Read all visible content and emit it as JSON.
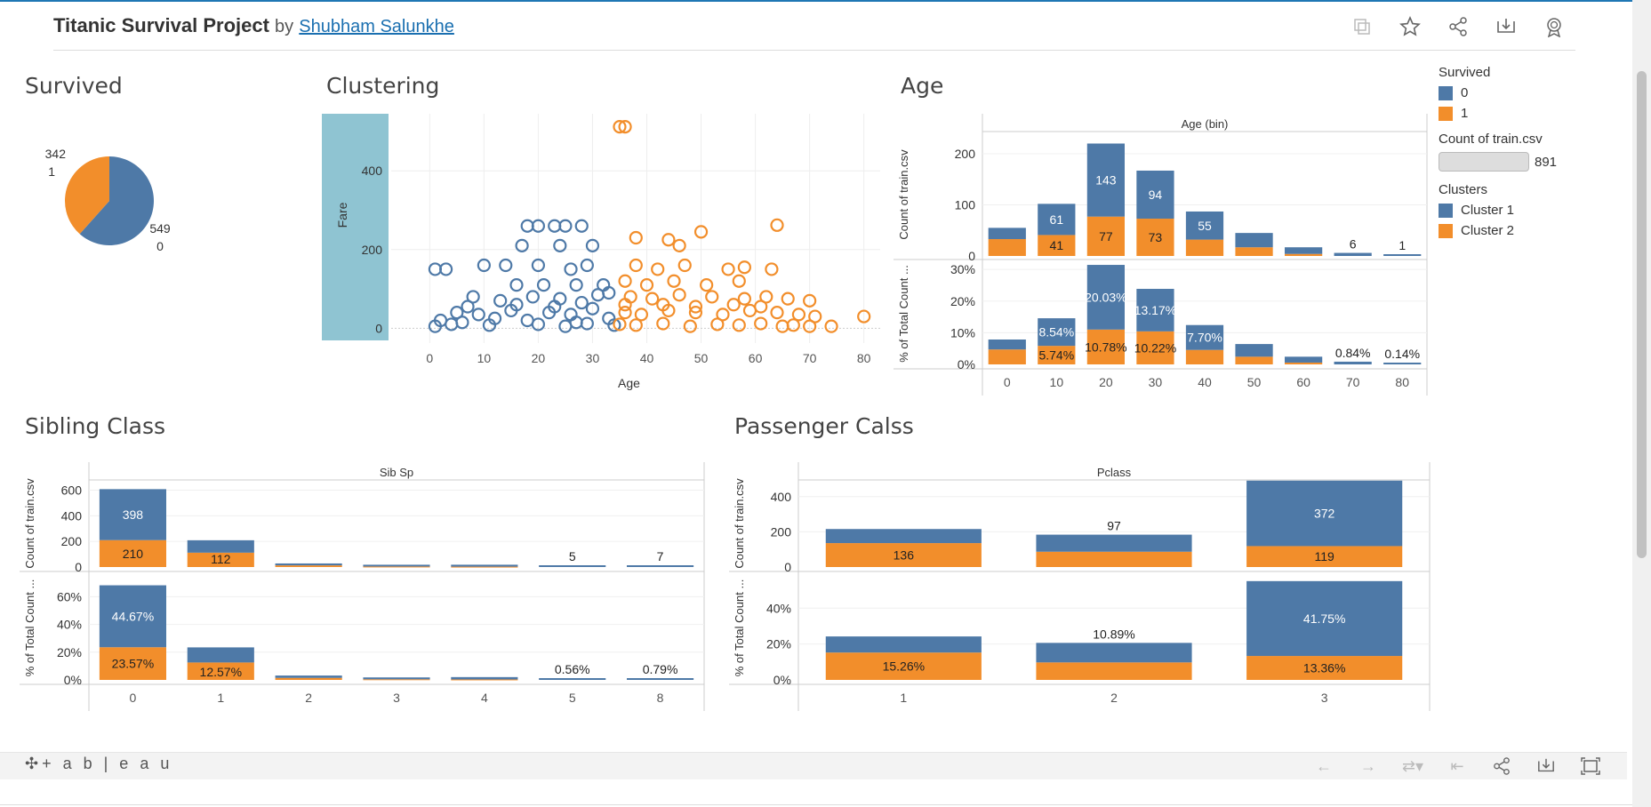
{
  "header": {
    "title": "Titanic Survival Project",
    "by": "by",
    "author": "Shubham Salunkhe"
  },
  "sections": {
    "survived": "Survived",
    "clustering": "Clustering",
    "age": "Age",
    "sibling": "Sibling Class",
    "passenger": "Passenger Calss"
  },
  "legend": {
    "survived_title": "Survived",
    "survived_items": [
      "0",
      "1"
    ],
    "count_title": "Count of train.csv",
    "count_value": "891",
    "clusters_title": "Clusters",
    "cluster_items": [
      "Cluster 1",
      "Cluster 2"
    ]
  },
  "colors": {
    "blue": "#4e79a7",
    "orange": "#f28e2b",
    "highlight": "#8fc4d2"
  },
  "footer": {
    "logo": "+ a b | e a u"
  },
  "chart_data": [
    {
      "id": "survived_pie",
      "type": "pie",
      "title": "Survived",
      "slices": [
        {
          "label": "0",
          "value": 549,
          "color": "#4e79a7"
        },
        {
          "label": "1",
          "value": 342,
          "color": "#f28e2b"
        }
      ]
    },
    {
      "id": "clustering_scatter",
      "type": "scatter",
      "title": "Clustering",
      "xlabel": "Age",
      "ylabel": "Fare",
      "xlim": [
        -3,
        83
      ],
      "ylim": [
        -15,
        545
      ],
      "xticks": [
        "0",
        "10",
        "20",
        "30",
        "40",
        "50",
        "60",
        "70",
        "80"
      ],
      "yticks": [
        "0",
        "200",
        "400"
      ],
      "series": [
        {
          "name": "Cluster 1",
          "color": "#4e79a7",
          "points": [
            [
              1,
              150
            ],
            [
              3,
              150
            ],
            [
              18,
              260
            ],
            [
              20,
              260
            ],
            [
              23,
              260
            ],
            [
              25,
              260
            ],
            [
              28,
              260
            ],
            [
              17,
              210
            ],
            [
              24,
              210
            ],
            [
              30,
              210
            ],
            [
              10,
              160
            ],
            [
              14,
              160
            ],
            [
              20,
              160
            ],
            [
              26,
              150
            ],
            [
              29,
              160
            ],
            [
              16,
              110
            ],
            [
              21,
              110
            ],
            [
              27,
              110
            ],
            [
              32,
              110
            ],
            [
              8,
              80
            ],
            [
              13,
              70
            ],
            [
              19,
              80
            ],
            [
              24,
              75
            ],
            [
              31,
              85
            ],
            [
              33,
              90
            ],
            [
              5,
              40
            ],
            [
              9,
              35
            ],
            [
              15,
              45
            ],
            [
              22,
              40
            ],
            [
              26,
              35
            ],
            [
              30,
              50
            ],
            [
              2,
              20
            ],
            [
              6,
              15
            ],
            [
              12,
              25
            ],
            [
              18,
              20
            ],
            [
              27,
              15
            ],
            [
              33,
              25
            ],
            [
              1,
              5
            ],
            [
              4,
              10
            ],
            [
              11,
              8
            ],
            [
              20,
              10
            ],
            [
              25,
              5
            ],
            [
              29,
              12
            ],
            [
              34,
              8
            ],
            [
              7,
              55
            ],
            [
              16,
              60
            ],
            [
              23,
              55
            ],
            [
              28,
              65
            ]
          ]
        },
        {
          "name": "Cluster 2",
          "color": "#f28e2b",
          "points": [
            [
              35,
              512
            ],
            [
              36,
              512
            ],
            [
              38,
              230
            ],
            [
              44,
              225
            ],
            [
              46,
              210
            ],
            [
              50,
              245
            ],
            [
              64,
              262
            ],
            [
              38,
              160
            ],
            [
              42,
              150
            ],
            [
              47,
              160
            ],
            [
              55,
              150
            ],
            [
              58,
              155
            ],
            [
              63,
              150
            ],
            [
              36,
              120
            ],
            [
              40,
              110
            ],
            [
              45,
              120
            ],
            [
              51,
              110
            ],
            [
              57,
              120
            ],
            [
              37,
              80
            ],
            [
              41,
              75
            ],
            [
              46,
              85
            ],
            [
              52,
              80
            ],
            [
              58,
              75
            ],
            [
              62,
              80
            ],
            [
              66,
              75
            ],
            [
              70,
              70
            ],
            [
              36,
              40
            ],
            [
              39,
              35
            ],
            [
              44,
              45
            ],
            [
              49,
              40
            ],
            [
              54,
              35
            ],
            [
              59,
              45
            ],
            [
              64,
              40
            ],
            [
              68,
              35
            ],
            [
              71,
              30
            ],
            [
              80,
              30
            ],
            [
              35,
              10
            ],
            [
              38,
              8
            ],
            [
              43,
              12
            ],
            [
              48,
              5
            ],
            [
              53,
              10
            ],
            [
              57,
              8
            ],
            [
              61,
              12
            ],
            [
              65,
              5
            ],
            [
              67,
              8
            ],
            [
              70,
              5
            ],
            [
              74,
              5
            ],
            [
              36,
              60
            ],
            [
              43,
              60
            ],
            [
              49,
              55
            ],
            [
              56,
              60
            ],
            [
              61,
              55
            ]
          ]
        }
      ]
    },
    {
      "id": "age_bins",
      "type": "bar",
      "title": "Age",
      "header": "Age (bin)",
      "categories": [
        "0",
        "10",
        "20",
        "30",
        "40",
        "50",
        "60",
        "70",
        "80"
      ],
      "series": [
        {
          "name": "0",
          "values": [
            22,
            61,
            143,
            94,
            55,
            28,
            13,
            6,
            1
          ]
        },
        {
          "name": "1",
          "values": [
            33,
            41,
            77,
            73,
            32,
            17,
            4,
            0,
            0
          ]
        }
      ],
      "count_labels": {
        "0": [
          "",
          "61",
          "143",
          "94",
          "55",
          "",
          "",
          "6",
          "1"
        ],
        "1": [
          "",
          "41",
          "77",
          "73",
          "",
          "",
          "",
          "",
          ""
        ]
      },
      "pct_labels": {
        "0": [
          "",
          "8.54%",
          "20.03%",
          "13.17%",
          "7.70%",
          "",
          "",
          "0.84%",
          "0.14%"
        ],
        "1": [
          "",
          "5.74%",
          "10.78%",
          "10.22%",
          "",
          "",
          "",
          "",
          ""
        ]
      },
      "ylabel_top": "Count of train.csv",
      "ylabel_bottom": "% of Total Count ...",
      "yticks_top": [
        "0",
        "100",
        "200"
      ],
      "yticks_bottom": [
        "0%",
        "10%",
        "20%",
        "30%"
      ],
      "ylim_top": [
        0,
        240
      ],
      "ylim_bottom": [
        0,
        0.32
      ]
    },
    {
      "id": "sibsp",
      "type": "bar",
      "title": "Sibling Class",
      "header": "Sib Sp",
      "categories": [
        "0",
        "1",
        "2",
        "3",
        "4",
        "5",
        "8"
      ],
      "series": [
        {
          "name": "0",
          "values": [
            398,
            97,
            15,
            12,
            15,
            5,
            7
          ]
        },
        {
          "name": "1",
          "values": [
            210,
            112,
            13,
            4,
            3,
            0,
            0
          ]
        }
      ],
      "count_labels": {
        "0": [
          "398",
          "",
          "",
          "",
          "",
          "5",
          "7"
        ],
        "1": [
          "210",
          "112",
          "",
          "",
          "",
          "",
          ""
        ]
      },
      "pct_labels": {
        "0": [
          "44.67%",
          "",
          "",
          "",
          "",
          "0.56%",
          "0.79%"
        ],
        "1": [
          "23.57%",
          "12.57%",
          "",
          "",
          "",
          "",
          ""
        ]
      },
      "ylabel_top": "Count of train.csv",
      "ylabel_bottom": "% of Total Count ...",
      "yticks_top": [
        "0",
        "200",
        "400",
        "600"
      ],
      "yticks_bottom": [
        "0%",
        "20%",
        "40%",
        "60%"
      ],
      "ylim_top": [
        0,
        680
      ],
      "ylim_bottom": [
        0,
        0.75
      ]
    },
    {
      "id": "pclass",
      "type": "bar",
      "title": "Passenger Calss",
      "header": "Pclass",
      "categories": [
        "1",
        "2",
        "3"
      ],
      "series": [
        {
          "name": "0",
          "values": [
            80,
            97,
            372
          ]
        },
        {
          "name": "1",
          "values": [
            136,
            87,
            119
          ]
        }
      ],
      "count_labels": {
        "0": [
          "",
          "97",
          "372"
        ],
        "1": [
          "136",
          "",
          "119"
        ]
      },
      "pct_labels": {
        "0": [
          "",
          "10.89%",
          "41.75%"
        ],
        "1": [
          "15.26%",
          "",
          "13.36%"
        ]
      },
      "ylabel_top": "Count of train.csv",
      "ylabel_bottom": "% of Total Count ...",
      "yticks_top": [
        "0",
        "200",
        "400"
      ],
      "yticks_bottom": [
        "0%",
        "20%",
        "40%"
      ],
      "ylim_top": [
        0,
        495
      ],
      "ylim_bottom": [
        0,
        0.58
      ]
    }
  ]
}
